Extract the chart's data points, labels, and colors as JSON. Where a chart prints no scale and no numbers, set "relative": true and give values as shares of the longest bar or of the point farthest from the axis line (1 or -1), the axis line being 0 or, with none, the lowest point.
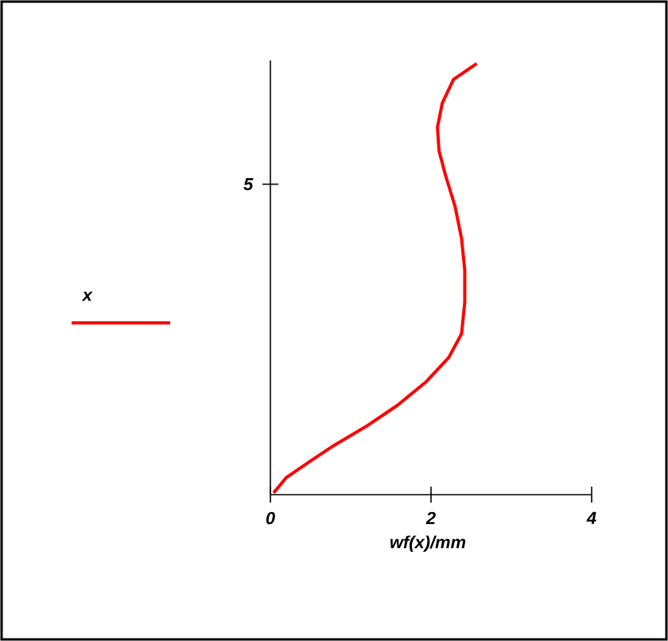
{
  "chart_data": {
    "type": "line",
    "xlabel": "wf(x)/mm",
    "relative": true,
    "xlim": [
      0,
      4
    ],
    "xticks": [
      0,
      2,
      4
    ],
    "annotations": [
      "5"
    ],
    "legend": "left",
    "grid": false,
    "series": [
      {
        "name": "x",
        "color": "#ff0000",
        "x": [
          0.04,
          0.2,
          0.5,
          0.79,
          1.19,
          1.58,
          1.94,
          2.22,
          2.38,
          2.42,
          2.42,
          2.38,
          2.3,
          2.18,
          2.1,
          2.08,
          2.14,
          2.28,
          2.57
        ],
        "values": [
          0.004,
          0.04,
          0.078,
          0.114,
          0.158,
          0.207,
          0.262,
          0.318,
          0.373,
          0.446,
          0.521,
          0.594,
          0.668,
          0.741,
          0.797,
          0.852,
          0.908,
          0.963,
          1
        ]
      }
    ]
  }
}
